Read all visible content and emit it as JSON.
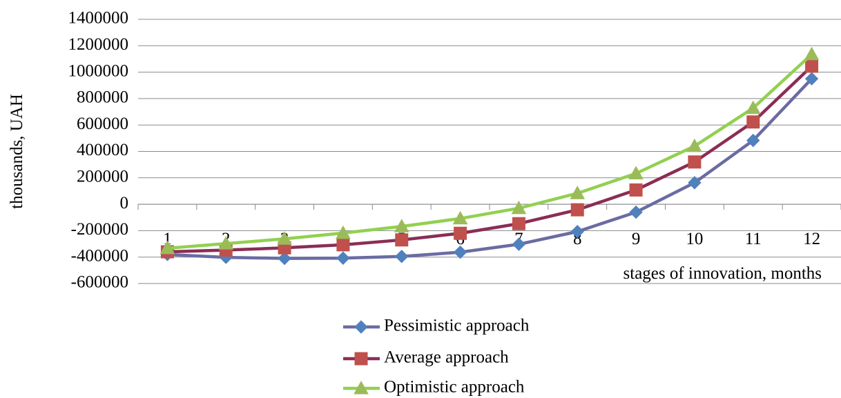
{
  "chart_data": {
    "type": "line",
    "title": "",
    "xlabel": "stages of innovation, months",
    "ylabel": "thousands, UAH",
    "ylim": [
      -600000,
      1400000
    ],
    "ytick_step": 200000,
    "grid": "horizontal",
    "legend_position": "bottom",
    "categories": [
      "1",
      "2",
      "3",
      "4",
      "5",
      "6",
      "7",
      "8",
      "9",
      "10",
      "11",
      "12"
    ],
    "series": [
      {
        "name": "Pessimistic approach",
        "color": "#6B6BA3",
        "marker_color": "#4F81BD",
        "marker": "diamond",
        "values": [
          -380000,
          -402000,
          -410000,
          -408000,
          -395000,
          -363000,
          -303000,
          -207000,
          -60000,
          163000,
          483000,
          950000
        ]
      },
      {
        "name": "Average approach",
        "color": "#8B2D55",
        "marker_color": "#C0504D",
        "marker": "square",
        "values": [
          -360000,
          -347000,
          -330000,
          -307000,
          -270000,
          -220000,
          -147000,
          -42000,
          108000,
          320000,
          623000,
          1045000
        ]
      },
      {
        "name": "Optimistic approach",
        "color": "#92D050",
        "marker_color": "#9BBB59",
        "marker": "triangle",
        "values": [
          -333000,
          -298000,
          -262000,
          -218000,
          -168000,
          -108000,
          -30000,
          83000,
          233000,
          440000,
          728000,
          1135000
        ]
      }
    ]
  }
}
